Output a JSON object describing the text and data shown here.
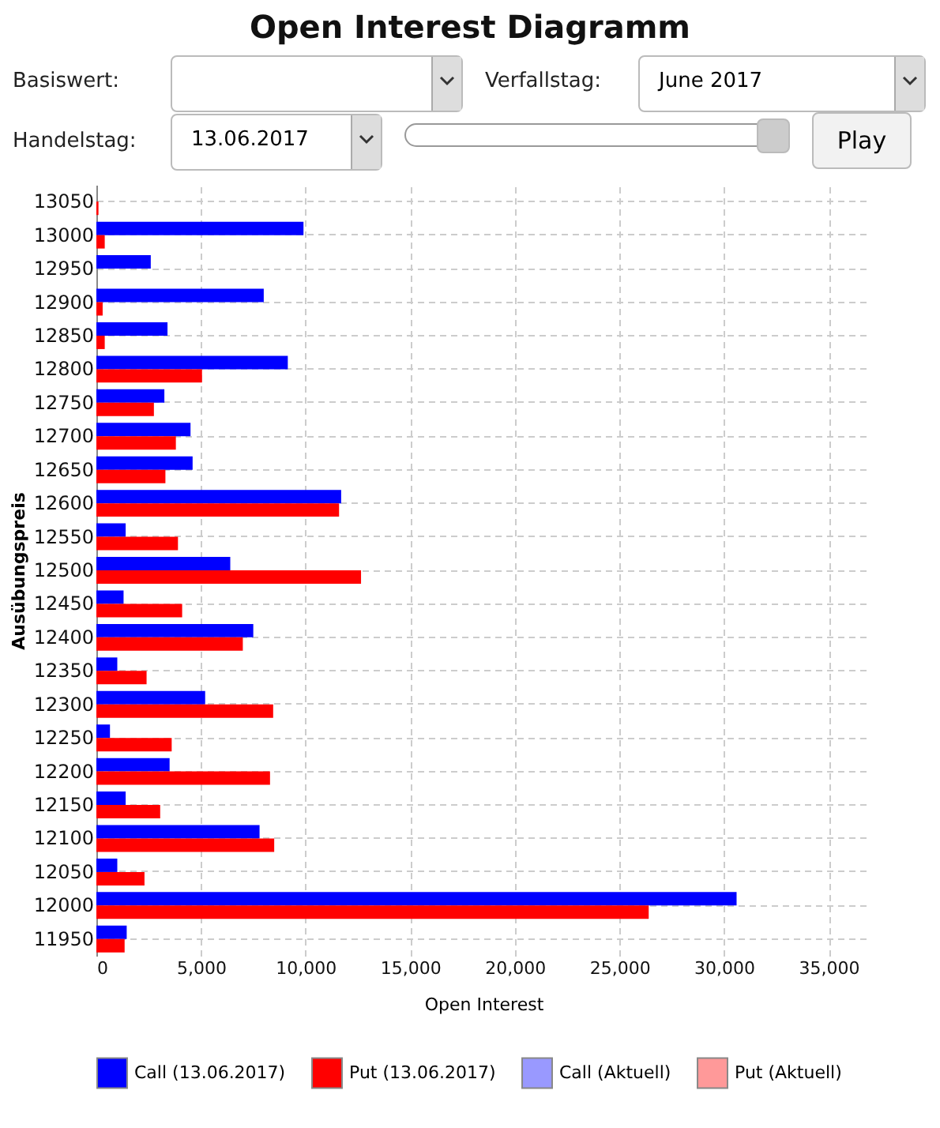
{
  "chart_data": {
    "type": "bar",
    "orientation": "horizontal",
    "title": "Open Interest Diagramm",
    "xlabel": "Open Interest",
    "ylabel": "Ausübungspreis",
    "categories": [
      "13050",
      "13000",
      "12950",
      "12900",
      "12850",
      "12800",
      "12750",
      "12700",
      "12650",
      "12600",
      "12550",
      "12500",
      "12450",
      "12400",
      "12350",
      "12300",
      "12250",
      "12200",
      "12150",
      "12100",
      "12050",
      "12000",
      "11950"
    ],
    "series": [
      {
        "name": "Call (13.06.2017)",
        "color": "#0000ff",
        "values": [
          0,
          9900,
          2600,
          8000,
          3400,
          9150,
          3250,
          4500,
          4600,
          11700,
          1400,
          6400,
          1300,
          7500,
          1000,
          5200,
          650,
          3500,
          1400,
          7800,
          1000,
          30600,
          1450
        ]
      },
      {
        "name": "Put (13.06.2017)",
        "color": "#ff0000",
        "values": [
          100,
          400,
          0,
          300,
          400,
          5050,
          2750,
          3800,
          3300,
          11600,
          3900,
          12650,
          4100,
          7000,
          2400,
          8450,
          3600,
          8300,
          3050,
          8500,
          2300,
          26400,
          1350
        ]
      },
      {
        "name": "Call (Aktuell)",
        "color": "#9999ff",
        "values": [
          null,
          null,
          null,
          null,
          null,
          null,
          null,
          null,
          null,
          null,
          null,
          null,
          null,
          null,
          null,
          null,
          null,
          null,
          null,
          null,
          null,
          null,
          null
        ]
      },
      {
        "name": "Put (Aktuell)",
        "color": "#ff9999",
        "values": [
          null,
          null,
          null,
          null,
          null,
          null,
          null,
          null,
          null,
          null,
          null,
          null,
          null,
          null,
          null,
          null,
          null,
          null,
          null,
          null,
          null,
          null,
          null
        ]
      }
    ],
    "xlim": [
      0,
      37000
    ],
    "xticks": [
      0,
      {
        "value": 5000,
        "label": "5,000"
      },
      {
        "value": 10000,
        "label": "10,000"
      },
      {
        "value": 15000,
        "label": "15,000"
      },
      {
        "value": 20000,
        "label": "20,000"
      },
      {
        "value": 25000,
        "label": "25,000"
      },
      {
        "value": 30000,
        "label": "30,000"
      },
      {
        "value": 35000,
        "label": "35,000"
      }
    ],
    "grid": true,
    "legend": "bottom",
    "annotations": [
      "Basiswert:",
      "Verfallstag:",
      "June 2017",
      "Handelstag:",
      "13.06.2017",
      "Play"
    ]
  }
}
